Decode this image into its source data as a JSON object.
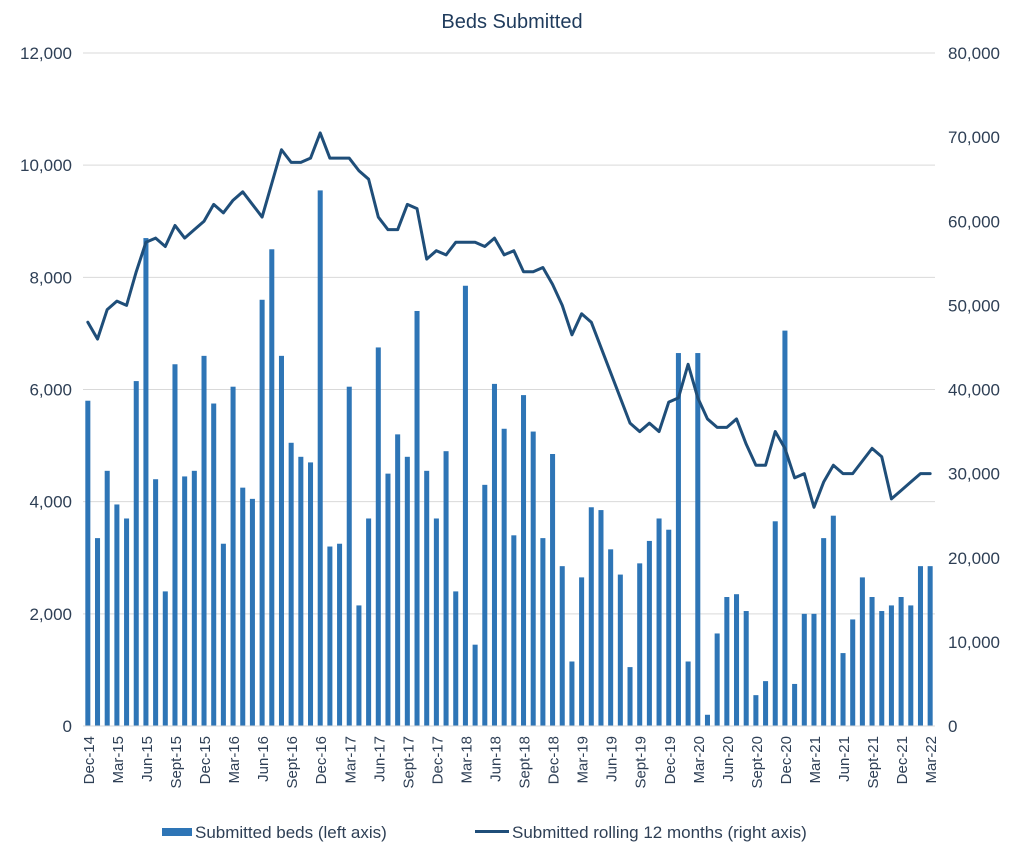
{
  "chart_data": {
    "type": "bar",
    "title": "Beds Submitted",
    "left_axis": {
      "min": 0,
      "max": 12000,
      "step": 2000,
      "tick_labels": [
        "0",
        "2,000",
        "4,000",
        "6,000",
        "8,000",
        "10,000",
        "12,000"
      ]
    },
    "right_axis": {
      "min": 0,
      "max": 80000,
      "step": 10000,
      "tick_labels": [
        "0",
        "10,000",
        "20,000",
        "30,000",
        "40,000",
        "50,000",
        "60,000",
        "70,000",
        "80,000"
      ]
    },
    "grid": true,
    "legend_position": "bottom",
    "colors": {
      "bars": "#2e75b6",
      "line": "#1f4e79",
      "grid": "#d9d9d9",
      "text": "#2e3f55"
    },
    "x_labels": [
      "Dec-14",
      "Mar-15",
      "Jun-15",
      "Sept-15",
      "Dec-15",
      "Mar-16",
      "Jun-16",
      "Sept-16",
      "Dec-16",
      "Mar-17",
      "Jun-17",
      "Sept-17",
      "Dec-17",
      "Mar-18",
      "Jun-18",
      "Sept-18",
      "Dec-18",
      "Mar-19",
      "Jun-19",
      "Sept-19",
      "Dec-19",
      "Mar-20",
      "Jun-20",
      "Sept-20",
      "Dec-20",
      "Mar-21",
      "Jun-21",
      "Sept-21",
      "Dec-21",
      "Mar-22"
    ],
    "series": [
      {
        "name": "Submitted beds (left axis)",
        "type": "bar",
        "axis": "left",
        "values": [
          5800,
          3350,
          4550,
          3950,
          3700,
          6150,
          8700,
          4400,
          2400,
          6450,
          4450,
          4550,
          6600,
          5750,
          3250,
          6050,
          4250,
          4050,
          7600,
          8500,
          6600,
          5050,
          4800,
          4700,
          9550,
          3200,
          3250,
          6050,
          2150,
          3700,
          6750,
          4500,
          5200,
          4800,
          7400,
          4550,
          3700,
          4900,
          2400,
          7850,
          1450,
          4300,
          6100,
          5300,
          3400,
          5900,
          5250,
          3350,
          4850,
          2850,
          1150,
          2650,
          3900,
          3850,
          3150,
          2700,
          1050,
          2900,
          3300,
          3700,
          3500,
          6650,
          1150,
          6650,
          200,
          1650,
          2300,
          2350,
          2050,
          550,
          800,
          3650,
          7050,
          750,
          2000,
          2000,
          3350,
          3750,
          1300,
          1900,
          2650,
          2300,
          2050,
          2150,
          2300,
          2150,
          2850,
          2850
        ]
      },
      {
        "name": "Submitted rolling 12 months (right axis)",
        "type": "line",
        "axis": "right",
        "values": [
          48000,
          46000,
          49500,
          50500,
          50000,
          54000,
          57500,
          58000,
          57000,
          59500,
          58000,
          59000,
          60000,
          62000,
          61000,
          62500,
          63500,
          62000,
          60500,
          64500,
          68500,
          67000,
          67000,
          67500,
          70500,
          67500,
          67500,
          67500,
          66000,
          65000,
          60500,
          59000,
          59000,
          62000,
          61500,
          55500,
          56500,
          56000,
          57500,
          57500,
          57500,
          57000,
          58000,
          56000,
          56500,
          54000,
          54000,
          54500,
          52500,
          50000,
          46500,
          49000,
          48000,
          45000,
          42000,
          39000,
          36000,
          35000,
          36000,
          35000,
          38500,
          39000,
          43000,
          39000,
          36500,
          35500,
          35500,
          36500,
          33500,
          31000,
          31000,
          35000,
          33000,
          29500,
          30000,
          26000,
          29000,
          31000,
          30000,
          30000,
          31500,
          33000,
          32000,
          27000,
          28000,
          29000,
          30000,
          30000
        ]
      }
    ]
  }
}
